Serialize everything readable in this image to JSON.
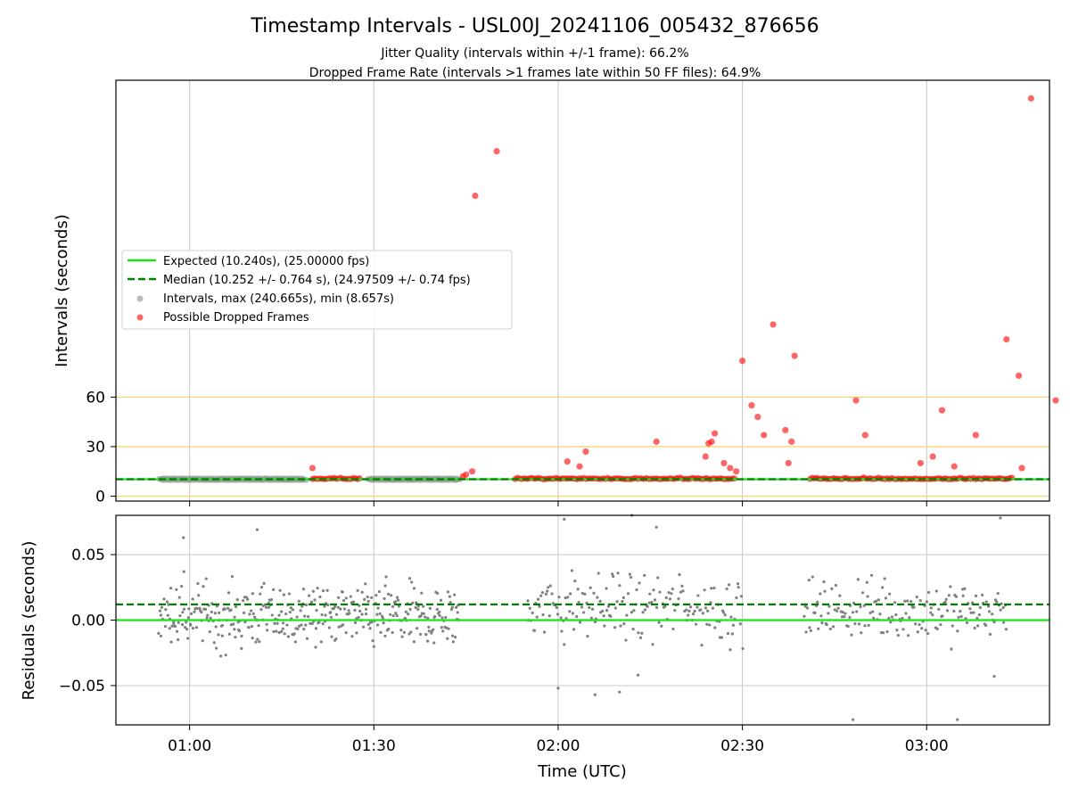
{
  "title": "Timestamp Intervals - USL00J_20241106_005432_876656",
  "subtitle_1": "Jitter Quality (intervals within +/-1 frame): 66.2%",
  "subtitle_2": "Dropped Frame Rate (intervals >1 frames late within 50 FF files): 64.9%",
  "colors": {
    "expected": "#1ee11e",
    "median": "#008000",
    "intervals": "#808080",
    "dropped": "#ff0000",
    "threshold": "#ffd27a",
    "grid": "#c8c8c8"
  },
  "chart_data": [
    {
      "type": "scatter",
      "panel": "top",
      "ylabel": "Intervals (seconds)",
      "y_ticks": [
        0,
        30,
        60
      ],
      "y_tick_labels": [
        "0",
        "30",
        "60"
      ],
      "x_range": [
        "00:48",
        "03:20"
      ],
      "y_range": [
        -3,
        252
      ],
      "horizontal_lines": [
        {
          "name": "threshold",
          "y": 0
        },
        {
          "name": "threshold",
          "y": 30
        },
        {
          "name": "threshold",
          "y": 60
        }
      ],
      "expected_interval": 10.24,
      "median_interval": 10.252,
      "legend": {
        "placement": "center-left",
        "entries": [
          "Expected (10.240s), (25.00000 fps)",
          "Median (10.252 +/- 0.764 s), (24.97509 +/- 0.74 fps)",
          "Intervals, max (240.665s), min (8.657s)",
          "Possible Dropped Frames"
        ]
      },
      "normal_interval_segments": [
        {
          "start": "00:55",
          "end": "01:19"
        },
        {
          "start": "01:29",
          "end": "01:44"
        }
      ],
      "dropped_frames": [
        {
          "t": "01:20",
          "v": 17
        },
        {
          "t": "01:44.5",
          "v": 12
        },
        {
          "t": "01:45",
          "v": 13
        },
        {
          "t": "01:46",
          "v": 15
        },
        {
          "t": "01:46.5",
          "v": 182
        },
        {
          "t": "01:50",
          "v": 209
        },
        {
          "t": "02:01.5",
          "v": 21
        },
        {
          "t": "02:03.5",
          "v": 18
        },
        {
          "t": "02:04.5",
          "v": 27
        },
        {
          "t": "02:16",
          "v": 33
        },
        {
          "t": "02:24",
          "v": 24
        },
        {
          "t": "02:24.5",
          "v": 32
        },
        {
          "t": "02:25",
          "v": 33
        },
        {
          "t": "02:25.5",
          "v": 38
        },
        {
          "t": "02:27",
          "v": 20
        },
        {
          "t": "02:28",
          "v": 17
        },
        {
          "t": "02:29",
          "v": 15
        },
        {
          "t": "02:30",
          "v": 82
        },
        {
          "t": "02:31.5",
          "v": 55
        },
        {
          "t": "02:32.5",
          "v": 48
        },
        {
          "t": "02:33.5",
          "v": 37
        },
        {
          "t": "02:35",
          "v": 104
        },
        {
          "t": "02:37",
          "v": 40
        },
        {
          "t": "02:37.5",
          "v": 20
        },
        {
          "t": "02:38",
          "v": 33
        },
        {
          "t": "02:38.5",
          "v": 85
        },
        {
          "t": "02:48.5",
          "v": 58
        },
        {
          "t": "02:50",
          "v": 37
        },
        {
          "t": "02:59",
          "v": 20
        },
        {
          "t": "03:01",
          "v": 24
        },
        {
          "t": "03:02.5",
          "v": 52
        },
        {
          "t": "03:04.5",
          "v": 18
        },
        {
          "t": "03:08",
          "v": 37
        },
        {
          "t": "03:13",
          "v": 95
        },
        {
          "t": "03:15",
          "v": 73
        },
        {
          "t": "03:15.5",
          "v": 17
        },
        {
          "t": "03:17",
          "v": 241
        },
        {
          "t": "03:21",
          "v": 58
        }
      ],
      "dropped_clusters": [
        {
          "start": "01:20",
          "end": "01:28"
        },
        {
          "start": "01:53",
          "end": "02:29"
        },
        {
          "start": "02:41",
          "end": "03:14"
        }
      ]
    },
    {
      "type": "scatter",
      "panel": "bottom",
      "xlabel": "Time (UTC)",
      "ylabel": "Residuals (seconds)",
      "x_ticks": [
        "01:00",
        "01:30",
        "02:00",
        "02:30",
        "03:00"
      ],
      "y_ticks": [
        -0.05,
        0.0,
        0.05
      ],
      "y_tick_labels": [
        "−0.05",
        "0.00",
        "0.05"
      ],
      "y_range": [
        -0.08,
        0.08
      ],
      "expected_residual": 0.0,
      "median_residual": 0.012,
      "residual_clusters": [
        {
          "start": "00:55",
          "end": "01:44",
          "typical_range": [
            -0.035,
            0.04
          ]
        },
        {
          "start": "01:55",
          "end": "02:30",
          "typical_range": [
            -0.03,
            0.05
          ]
        },
        {
          "start": "02:40",
          "end": "03:13",
          "typical_range": [
            -0.03,
            0.045
          ]
        }
      ],
      "outliers": [
        {
          "t": "00:59",
          "v": 0.063
        },
        {
          "t": "01:11",
          "v": 0.069
        },
        {
          "t": "02:01",
          "v": 0.077
        },
        {
          "t": "02:12",
          "v": 0.08
        },
        {
          "t": "02:16",
          "v": 0.071
        },
        {
          "t": "02:00",
          "v": -0.052
        },
        {
          "t": "02:06",
          "v": -0.057
        },
        {
          "t": "02:10",
          "v": -0.055
        },
        {
          "t": "02:13",
          "v": -0.042
        },
        {
          "t": "02:48",
          "v": -0.076
        },
        {
          "t": "03:05",
          "v": -0.076
        },
        {
          "t": "03:11",
          "v": -0.043
        },
        {
          "t": "03:12",
          "v": 0.078
        }
      ]
    }
  ]
}
